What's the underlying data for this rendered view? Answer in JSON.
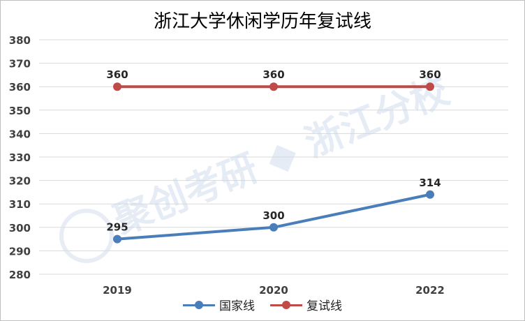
{
  "chart_data": {
    "type": "line",
    "title": "浙江大学休闲学历年复试线",
    "categories": [
      "2019",
      "2020",
      "2022"
    ],
    "series": [
      {
        "name": "国家线",
        "values": [
          295,
          300,
          314
        ],
        "color": "#4a7ebb"
      },
      {
        "name": "复试线",
        "values": [
          360,
          360,
          360
        ],
        "color": "#be4b48"
      }
    ],
    "ylim": [
      280,
      380
    ],
    "ytick_step": 10,
    "grid": true,
    "legend": "bottom",
    "data_labels": true
  },
  "watermark": "聚创考研 ◆ 浙江分校"
}
